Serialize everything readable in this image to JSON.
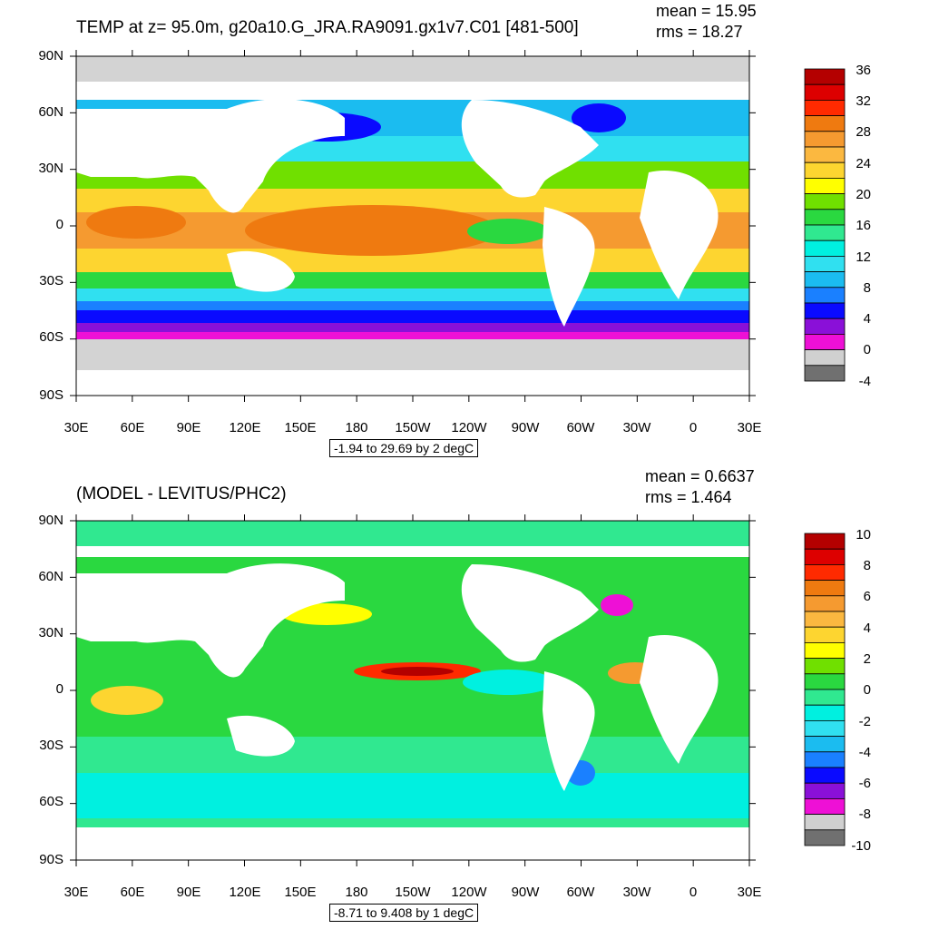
{
  "panels": [
    {
      "title": "TEMP at z=  95.0m, g20a10.G_JRA.RA9091.gx1v7.C01 [481-500]",
      "mean": "mean = 15.95",
      "rms": "rms = 18.27",
      "range_label": "-1.94 to 29.69 by 2 degC",
      "colorbar": {
        "labels": [
          "36",
          "32",
          "28",
          "24",
          "20",
          "16",
          "12",
          "8",
          "4",
          "0",
          "-4"
        ],
        "colors": [
          "#b40000",
          "#dd0000",
          "#ff2a00",
          "#ef7a10",
          "#f59a30",
          "#fbb840",
          "#fdd530",
          "#ffff00",
          "#70e000",
          "#2ad840",
          "#30e890",
          "#00f0e0",
          "#30e0f0",
          "#1bbcf0",
          "#1a80ff",
          "#0a0aff",
          "#8a10d8",
          "#ee10d6",
          "#d0d0d0",
          "#707070"
        ]
      }
    },
    {
      "title": "(MODEL - LEVITUS/PHC2)",
      "mean": "mean = 0.6637",
      "rms": "rms = 1.464",
      "range_label": "-8.71 to 9.408 by 1 degC",
      "colorbar": {
        "labels": [
          "10",
          "8",
          "6",
          "4",
          "2",
          "0",
          "-2",
          "-4",
          "-6",
          "-8",
          "-10"
        ],
        "colors": [
          "#b40000",
          "#dd0000",
          "#ff2a00",
          "#ef7a10",
          "#f59a30",
          "#fbb840",
          "#fdd530",
          "#ffff00",
          "#70e000",
          "#2ad840",
          "#30e890",
          "#00f0e0",
          "#30e0f0",
          "#1bbcf0",
          "#1a80ff",
          "#0a0aff",
          "#8a10d8",
          "#ee10d6",
          "#d0d0d0",
          "#707070"
        ]
      }
    }
  ],
  "axes": {
    "y_ticks": [
      "90N",
      "60N",
      "30N",
      "0",
      "30S",
      "60S",
      "90S"
    ],
    "x_ticks": [
      "30E",
      "60E",
      "90E",
      "120E",
      "150E",
      "180",
      "150W",
      "120W",
      "90W",
      "60W",
      "30W",
      "0",
      "30E"
    ]
  },
  "colors": {
    "land": "#ffffff",
    "ice": "#d3d3d3",
    "warm_pool": "#f08c1c",
    "tropics": "#fbb840",
    "subtropics": "#ffff00",
    "midlat": "#30d040",
    "cool": "#20e0d8",
    "cold": "#1a80ff",
    "polar": "#0a0aff",
    "southern": "#8a10d8",
    "frozen": "#ee10d6"
  },
  "chart_data": [
    {
      "type": "heatmap",
      "title": "TEMP at z=  95.0m, g20a10.G_JRA.RA9091.gx1v7.C01 [481-500]",
      "variable": "ocean temperature at 95.0 m depth (degC)",
      "mean": 15.95,
      "rms": 18.27,
      "data_min": -1.94,
      "data_max": 29.69,
      "contour_interval": 2,
      "units": "degC",
      "colorbar_ticks": [
        36,
        32,
        28,
        24,
        20,
        16,
        12,
        8,
        4,
        0,
        -4
      ],
      "x_range": "30E to 30E (360 degrees longitude)",
      "y_range": [
        -90,
        90
      ],
      "bands": [
        {
          "lat_start": 68,
          "lat_end": 90,
          "value_degC": -2
        },
        {
          "lat_start": 45,
          "lat_end": 68,
          "value_degC": 6
        },
        {
          "lat_start": 30,
          "lat_end": 45,
          "value_degC": 15
        },
        {
          "lat_start": 15,
          "lat_end": 30,
          "value_degC": 21
        },
        {
          "lat_start": -15,
          "lat_end": 15,
          "value_degC": 26
        },
        {
          "lat_start": -30,
          "lat_end": -15,
          "value_degC": 22
        },
        {
          "lat_start": -45,
          "lat_end": -30,
          "value_degC": 14
        },
        {
          "lat_start": -55,
          "lat_end": -45,
          "value_degC": 6
        },
        {
          "lat_start": -65,
          "lat_end": -55,
          "value_degC": 1
        },
        {
          "lat_start": -90,
          "lat_end": -65,
          "value_degC": -2
        }
      ]
    },
    {
      "type": "heatmap",
      "title": "(MODEL - LEVITUS/PHC2)",
      "variable": "temperature difference, model minus Levitus/PHC2 (degC)",
      "mean": 0.6637,
      "rms": 1.464,
      "data_min": -8.71,
      "data_max": 9.408,
      "contour_interval": 1,
      "units": "degC",
      "colorbar_ticks": [
        10,
        8,
        6,
        4,
        2,
        0,
        -2,
        -4,
        -6,
        -8,
        -10
      ],
      "x_range": "30E to 30E (360 degrees longitude)",
      "y_range": [
        -90,
        90
      ],
      "bands": [
        {
          "lat_start": 65,
          "lat_end": 90,
          "value_degC": 0.5
        },
        {
          "lat_start": 20,
          "lat_end": 65,
          "value_degC": 1
        },
        {
          "lat_start": -20,
          "lat_end": 20,
          "value_degC": 1
        },
        {
          "lat_start": -45,
          "lat_end": -20,
          "value_degC": 0.5
        },
        {
          "lat_start": -90,
          "lat_end": -45,
          "value_degC": -0.5
        }
      ]
    }
  ]
}
